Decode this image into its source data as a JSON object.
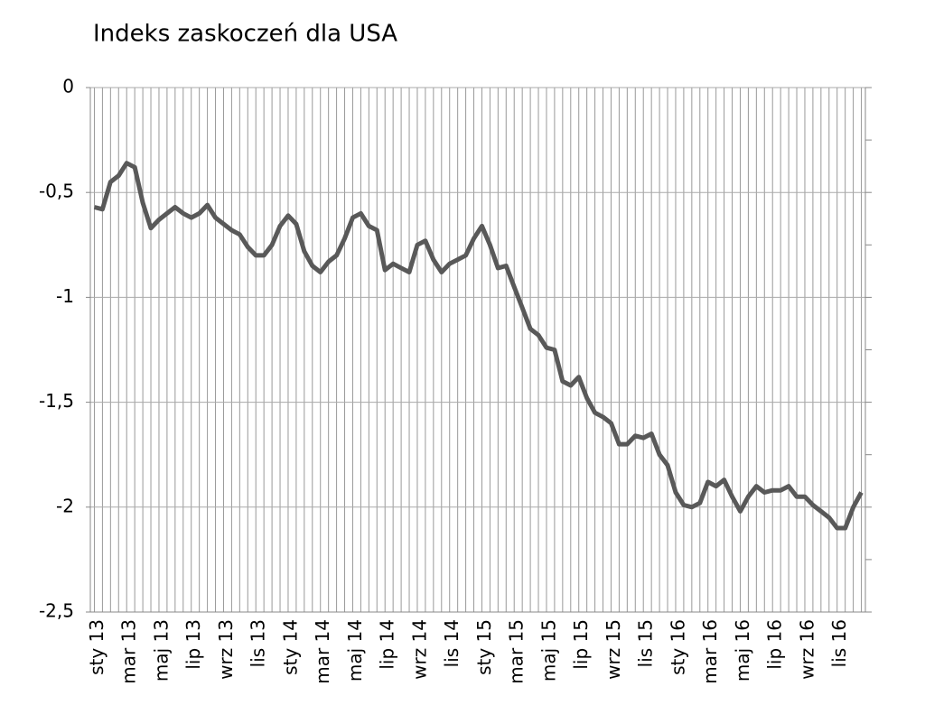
{
  "chart_data": {
    "type": "line",
    "title": "Indeks zaskoczeń dla USA",
    "categories": [
      "sty 13",
      null,
      null,
      null,
      "mar 13",
      null,
      null,
      null,
      "maj 13",
      null,
      null,
      null,
      "lip 13",
      null,
      null,
      null,
      "wrz 13",
      null,
      null,
      null,
      "lis 13",
      null,
      null,
      null,
      "sty 14",
      null,
      null,
      null,
      "mar 14",
      null,
      null,
      null,
      "maj 14",
      null,
      null,
      null,
      "lip 14",
      null,
      null,
      null,
      "wrz 14",
      null,
      null,
      null,
      "lis 14",
      null,
      null,
      null,
      "sty 15",
      null,
      null,
      null,
      "mar 15",
      null,
      null,
      null,
      "maj 15",
      null,
      null,
      null,
      "lip 15",
      null,
      null,
      null,
      "wrz 15",
      null,
      null,
      null,
      "lis 15",
      null,
      null,
      null,
      "sty 16",
      null,
      null,
      null,
      "mar 16",
      null,
      null,
      null,
      "maj 16",
      null,
      null,
      null,
      "lip 16",
      null,
      null,
      null,
      "wrz 16",
      null,
      null,
      null,
      "lis 16",
      null,
      null,
      null
    ],
    "series": [
      {
        "color": "#595959",
        "values": [
          -0.57,
          -0.58,
          -0.45,
          -0.42,
          -0.36,
          -0.38,
          -0.55,
          -0.67,
          -0.63,
          -0.6,
          -0.57,
          -0.6,
          -0.62,
          -0.6,
          -0.56,
          -0.62,
          -0.65,
          -0.68,
          -0.7,
          -0.76,
          -0.8,
          -0.8,
          -0.75,
          -0.66,
          -0.61,
          -0.65,
          -0.78,
          -0.85,
          -0.88,
          -0.83,
          -0.8,
          -0.72,
          -0.62,
          -0.6,
          -0.66,
          -0.68,
          -0.87,
          -0.84,
          -0.86,
          -0.88,
          -0.75,
          -0.73,
          -0.82,
          -0.88,
          -0.84,
          -0.82,
          -0.8,
          -0.72,
          -0.66,
          -0.75,
          -0.86,
          -0.85,
          -0.95,
          -1.05,
          -1.15,
          -1.18,
          -1.24,
          -1.25,
          -1.4,
          -1.42,
          -1.38,
          -1.48,
          -1.55,
          -1.57,
          -1.6,
          -1.7,
          -1.7,
          -1.66,
          -1.67,
          -1.65,
          -1.75,
          -1.8,
          -1.93,
          -1.99,
          -2.0,
          -1.98,
          -1.88,
          -1.9,
          -1.87,
          -1.95,
          -2.02,
          -1.95,
          -1.9,
          -1.93,
          -1.92,
          -1.92,
          -1.9,
          -1.95,
          -1.95,
          -1.99,
          -2.02,
          -2.05,
          -2.1,
          -2.1,
          -2.0,
          -1.93
        ]
      }
    ],
    "ylim": [
      -2.5,
      0
    ],
    "yticks": [
      0,
      {
        "value": -0.5,
        "label": "-0,5"
      },
      -1,
      {
        "value": -1.5,
        "label": "-1,5"
      },
      -2,
      {
        "value": -2.5,
        "label": "-2,5"
      }
    ],
    "grid": true
  }
}
